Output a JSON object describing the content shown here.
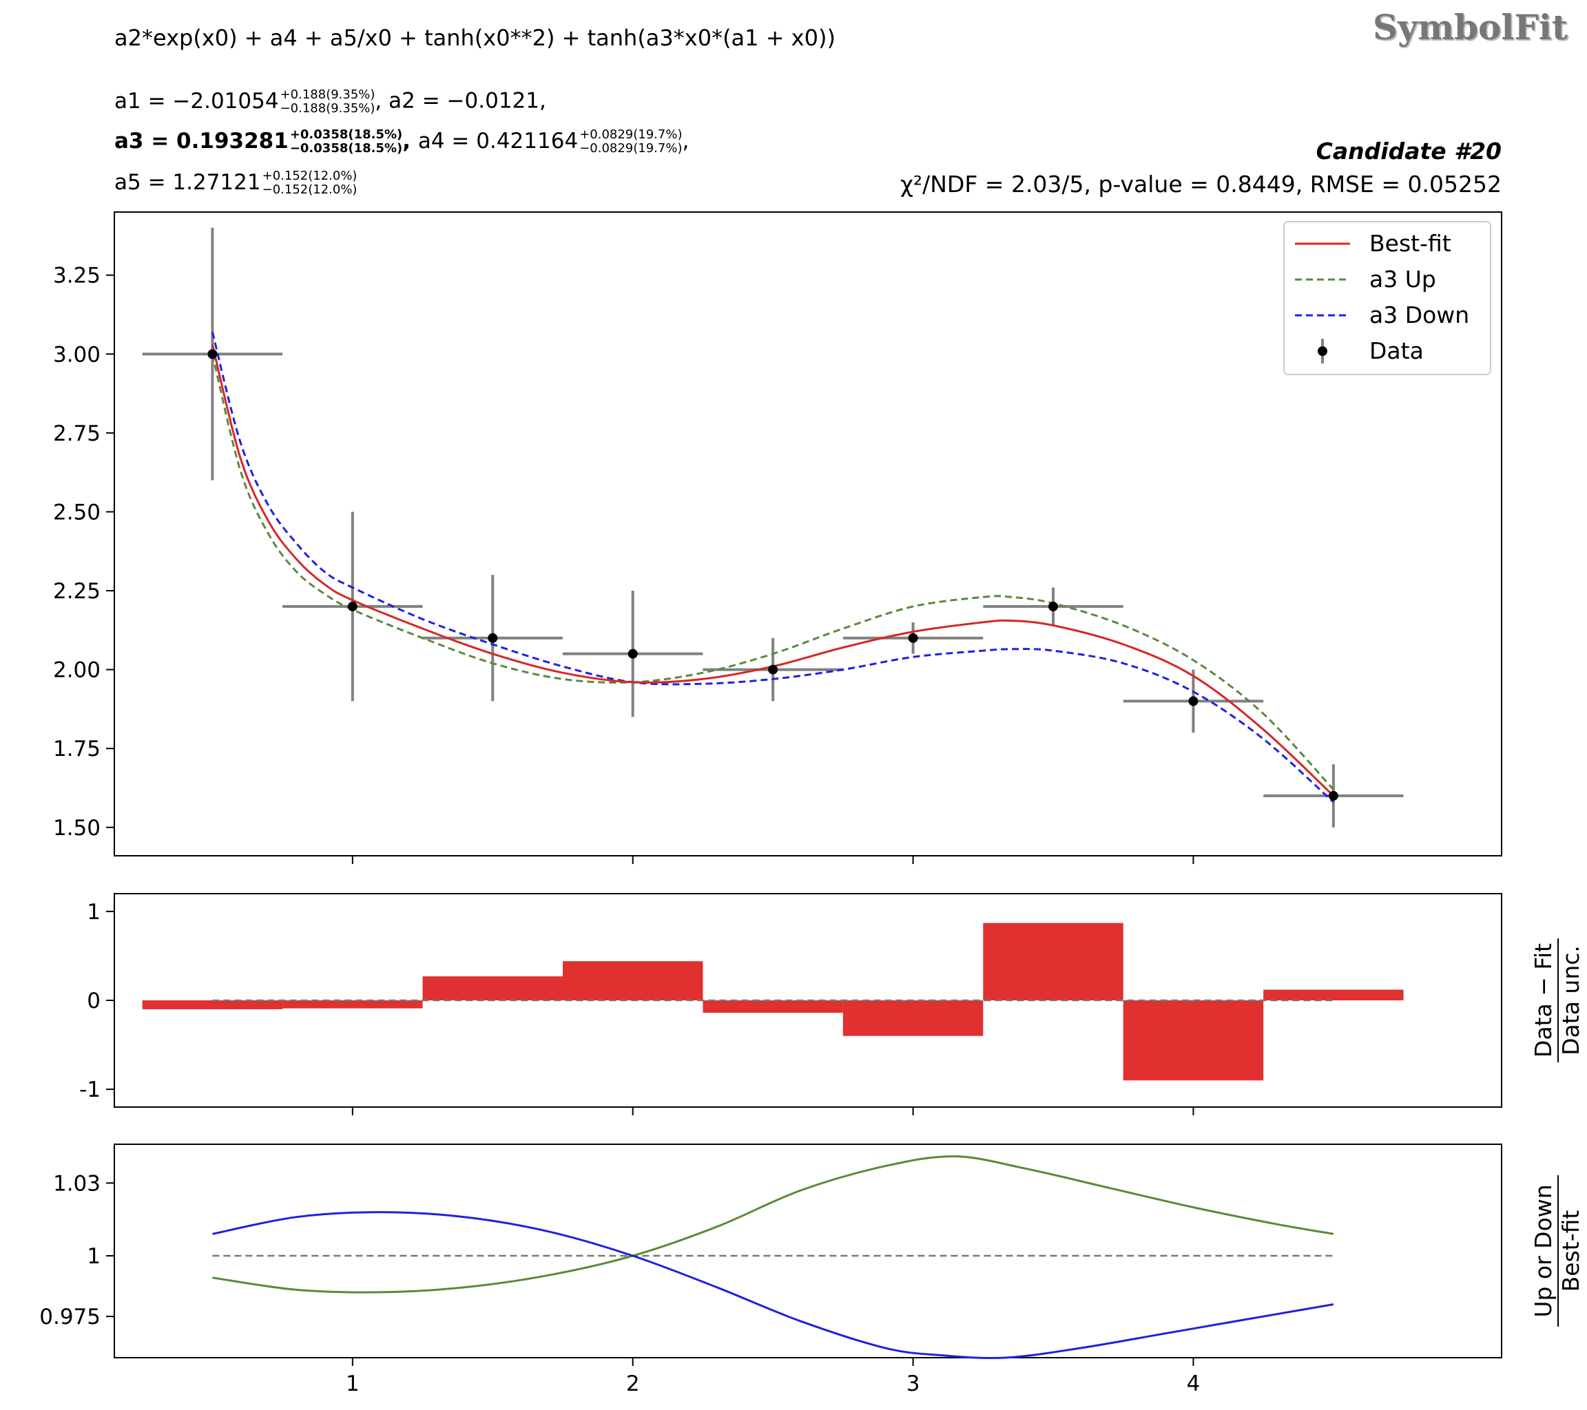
{
  "header": {
    "formula": "a2*exp(x0) + a4 + a5/x0 + tanh(x0**2) + tanh(a3*x0*(a1 + x0))",
    "brand": "SymbolFit",
    "candidate": "Candidate #20",
    "stats": "χ²/NDF = 2.03/5, p-value = 0.8449, RMSE = 0.05252"
  },
  "params": [
    {
      "name": "a1",
      "value": "−2.01054",
      "up": "+0.188(9.35%)",
      "down": "−0.188(9.35%)",
      "bold": false,
      "line": 0
    },
    {
      "name": "a2",
      "value": "−0.0121",
      "up": "",
      "down": "",
      "bold": false,
      "line": 0
    },
    {
      "name": "a3",
      "value": "0.193281",
      "up": "+0.0358(18.5%)",
      "down": "−0.0358(18.5%)",
      "bold": true,
      "line": 1
    },
    {
      "name": "a4",
      "value": "0.421164",
      "up": "+0.0829(19.7%)",
      "down": "−0.0829(19.7%)",
      "bold": false,
      "line": 1
    },
    {
      "name": "a5",
      "value": "1.27121",
      "up": "+0.152(12.0%)",
      "down": "−0.152(12.0%)",
      "bold": false,
      "line": 2
    }
  ],
  "colors": {
    "bestfit": "#d62728",
    "up": "#5a8a3a",
    "down": "#2020e0",
    "data": "#000000",
    "errbar": "#808080",
    "residual": "#e03030"
  },
  "chart_data": [
    {
      "type": "line",
      "panel": "main",
      "xlim": [
        0.15,
        5.1
      ],
      "ylim": [
        1.41,
        3.45
      ],
      "yticks": [
        "1.50",
        "1.75",
        "2.00",
        "2.25",
        "2.50",
        "2.75",
        "3.00",
        "3.25"
      ],
      "legend": [
        "Best-fit",
        "a3 Up",
        "a3 Down",
        "Data"
      ],
      "legend_position": "top-right",
      "data": {
        "x": [
          0.5,
          1.0,
          1.5,
          2.0,
          2.5,
          3.0,
          3.5,
          4.0,
          4.5
        ],
        "y": [
          3.0,
          2.2,
          2.1,
          2.05,
          2.0,
          2.1,
          2.2,
          1.9,
          1.6
        ],
        "yerr": [
          0.4,
          0.3,
          0.2,
          0.2,
          0.1,
          0.05,
          0.06,
          0.1,
          0.1
        ],
        "xerr": 0.25
      },
      "best_fit": {
        "x": [
          0.5,
          0.6,
          0.7,
          0.8,
          0.9,
          1.0,
          1.25,
          1.5,
          1.75,
          2.0,
          2.25,
          2.5,
          2.75,
          3.0,
          3.25,
          3.35,
          3.5,
          3.75,
          4.0,
          4.25,
          4.5
        ],
        "y": [
          3.03,
          2.67,
          2.47,
          2.35,
          2.27,
          2.22,
          2.13,
          2.05,
          1.99,
          1.96,
          1.97,
          2.01,
          2.07,
          2.12,
          2.15,
          2.155,
          2.14,
          2.08,
          1.98,
          1.81,
          1.6
        ]
      },
      "a3_up": {
        "x": [
          0.5,
          0.6,
          0.7,
          0.8,
          0.9,
          1.0,
          1.25,
          1.5,
          1.75,
          2.0,
          2.25,
          2.5,
          2.75,
          3.0,
          3.25,
          3.35,
          3.5,
          3.75,
          4.0,
          4.25,
          4.5
        ],
        "y": [
          3.0,
          2.63,
          2.43,
          2.31,
          2.24,
          2.19,
          2.1,
          2.02,
          1.97,
          1.96,
          1.99,
          2.05,
          2.13,
          2.2,
          2.23,
          2.23,
          2.21,
          2.14,
          2.03,
          1.86,
          1.62
        ]
      },
      "a3_down": {
        "x": [
          0.5,
          0.6,
          0.7,
          0.8,
          0.9,
          1.0,
          1.25,
          1.5,
          1.75,
          2.0,
          2.25,
          2.5,
          2.75,
          3.0,
          3.25,
          3.35,
          3.5,
          3.75,
          4.0,
          4.25,
          4.5
        ],
        "y": [
          3.07,
          2.72,
          2.52,
          2.4,
          2.31,
          2.26,
          2.16,
          2.08,
          2.01,
          1.96,
          1.955,
          1.97,
          2.0,
          2.04,
          2.06,
          2.065,
          2.06,
          2.02,
          1.93,
          1.78,
          1.58
        ]
      }
    },
    {
      "type": "bar",
      "panel": "residual",
      "ylabel": "Data − Fit / Data unc.",
      "ylim": [
        -1.2,
        1.2
      ],
      "yticks": [
        "1",
        "0",
        "-1"
      ],
      "x": [
        0.5,
        1.0,
        1.5,
        2.0,
        2.5,
        3.0,
        3.5,
        4.0,
        4.5
      ],
      "width": 0.5,
      "values": [
        -0.1,
        -0.09,
        0.27,
        0.44,
        -0.14,
        -0.4,
        0.87,
        -0.9,
        0.12
      ]
    },
    {
      "type": "line",
      "panel": "ratio",
      "ylabel": "Up or Down / Best-fit",
      "ylim": [
        0.958,
        1.046
      ],
      "yticks": [
        "1.03",
        "1",
        "0.975"
      ],
      "xticks": [
        "1",
        "2",
        "3",
        "4"
      ],
      "up": {
        "x": [
          0.5,
          0.8,
          1.1,
          1.4,
          1.7,
          2.0,
          2.3,
          2.6,
          2.9,
          3.15,
          3.4,
          3.7,
          4.0,
          4.3,
          4.5
        ],
        "y": [
          0.991,
          0.986,
          0.985,
          0.987,
          0.992,
          1.0,
          1.012,
          1.027,
          1.037,
          1.041,
          1.036,
          1.028,
          1.02,
          1.013,
          1.009
        ]
      },
      "down": {
        "x": [
          0.5,
          0.8,
          1.1,
          1.4,
          1.7,
          2.0,
          2.3,
          2.6,
          2.9,
          3.1,
          3.33,
          3.6,
          3.9,
          4.2,
          4.5
        ],
        "y": [
          1.009,
          1.016,
          1.018,
          1.016,
          1.01,
          1.0,
          0.987,
          0.973,
          0.962,
          0.959,
          0.958,
          0.962,
          0.968,
          0.974,
          0.98
        ]
      }
    }
  ]
}
